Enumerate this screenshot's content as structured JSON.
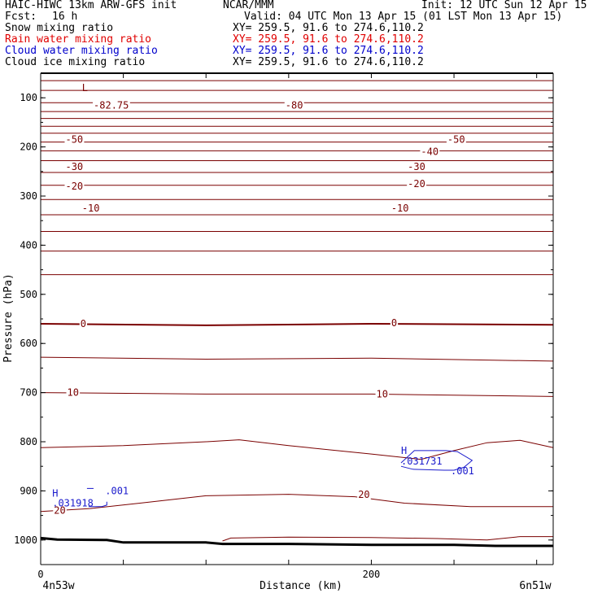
{
  "header": {
    "model": "HAIC-HIWC 13km ARW-GFS init",
    "org": "NCAR/MMM",
    "init": "Init: 12 UTC Sun 12 Apr 15",
    "fcst_label": "Fcst:",
    "fcst_value": "16 h",
    "valid": "Valid: 04 UTC Mon 13 Apr 15 (01 LST Mon 13 Apr 15)"
  },
  "fields": [
    {
      "name": "Snow mixing ratio",
      "xy": "XY= 259.5, 91.6 to 274.6,110.2",
      "color": "#000000"
    },
    {
      "name": "Rain water mixing ratio",
      "xy": "XY= 259.5, 91.6 to 274.6,110.2",
      "color": "#e00000"
    },
    {
      "name": "Cloud water mixing ratio",
      "xy": "XY= 259.5, 91.6 to 274.6,110.2",
      "color": "#0000cc"
    },
    {
      "name": "Cloud ice mixing ratio",
      "xy": "XY= 259.5, 91.6 to 274.6,110.2",
      "color": "#000000"
    }
  ],
  "chart_data": {
    "type": "line",
    "ylabel": "Pressure (hPa)",
    "xlabel": "Distance (km)",
    "x_ticks": [
      "0",
      "200"
    ],
    "y_ticks": [
      "100",
      "200",
      "300",
      "400",
      "500",
      "600",
      "700",
      "800",
      "900",
      "1000"
    ],
    "xlim": [
      0,
      310
    ],
    "ylim": [
      1050,
      50
    ],
    "left_endpoint": "4n53w",
    "right_endpoint": "6n51w",
    "contour_color": "#7a0000",
    "terrain_color": "#000000",
    "cloud_color": "#1a1acc",
    "contour_labels": [
      {
        "text": "-82.75",
        "x": 32,
        "y": 115
      },
      {
        "text": "-80",
        "x": 148,
        "y": 115
      },
      {
        "text": "-50",
        "x": 15,
        "y": 185
      },
      {
        "text": "-50",
        "x": 246,
        "y": 185
      },
      {
        "text": "-40",
        "x": 230,
        "y": 210
      },
      {
        "text": "-30",
        "x": 15,
        "y": 240
      },
      {
        "text": "-30",
        "x": 222,
        "y": 240
      },
      {
        "text": "-20",
        "x": 15,
        "y": 280
      },
      {
        "text": "-20",
        "x": 222,
        "y": 275
      },
      {
        "text": "-10",
        "x": 25,
        "y": 325
      },
      {
        "text": "-10",
        "x": 212,
        "y": 325
      },
      {
        "text": "0",
        "x": 24,
        "y": 560
      },
      {
        "text": "0",
        "x": 212,
        "y": 558
      },
      {
        "text": "10",
        "x": 16,
        "y": 700
      },
      {
        "text": "10",
        "x": 203,
        "y": 703
      },
      {
        "text": "20",
        "x": 192,
        "y": 908
      },
      {
        "text": "20",
        "x": 8,
        "y": 940
      }
    ],
    "extrema": [
      {
        "text": "L",
        "x": 25,
        "y": 80,
        "group": "contour"
      },
      {
        "text": "H",
        "x": 218,
        "y": 818,
        "group": "cloud"
      },
      {
        "text": ".031731",
        "x": 218,
        "y": 840,
        "group": "cloud"
      },
      {
        "text": ".001",
        "x": 248,
        "y": 860,
        "group": "cloud"
      },
      {
        "text": "H",
        "x": 7,
        "y": 905,
        "group": "cloud"
      },
      {
        "text": ".031918",
        "x": 7,
        "y": 925,
        "group": "cloud"
      },
      {
        "text": ".001",
        "x": 39,
        "y": 900,
        "group": "cloud"
      }
    ],
    "isotherms": [
      {
        "x": [
          0,
          310
        ],
        "y": [
          65,
          65
        ]
      },
      {
        "x": [
          0,
          310
        ],
        "y": [
          85,
          85
        ]
      },
      {
        "x": [
          0,
          310
        ],
        "y": [
          110,
          110
        ]
      },
      {
        "x": [
          0,
          310
        ],
        "y": [
          128,
          128
        ]
      },
      {
        "x": [
          0,
          310
        ],
        "y": [
          142,
          142
        ]
      },
      {
        "x": [
          0,
          310
        ],
        "y": [
          158,
          158
        ]
      },
      {
        "x": [
          0,
          310
        ],
        "y": [
          172,
          172
        ]
      },
      {
        "x": [
          0,
          310
        ],
        "y": [
          190,
          190
        ]
      },
      {
        "x": [
          0,
          310
        ],
        "y": [
          208,
          208
        ]
      },
      {
        "x": [
          0,
          310
        ],
        "y": [
          228,
          228
        ]
      },
      {
        "x": [
          0,
          310
        ],
        "y": [
          252,
          252
        ]
      },
      {
        "x": [
          0,
          310
        ],
        "y": [
          278,
          278
        ]
      },
      {
        "x": [
          0,
          310
        ],
        "y": [
          307,
          307
        ]
      },
      {
        "x": [
          0,
          310
        ],
        "y": [
          338,
          338
        ]
      },
      {
        "x": [
          0,
          310
        ],
        "y": [
          372,
          372
        ]
      },
      {
        "x": [
          0,
          310
        ],
        "y": [
          412,
          412
        ]
      },
      {
        "x": [
          0,
          310
        ],
        "y": [
          460,
          460
        ]
      },
      {
        "x": [
          0,
          100,
          200,
          310
        ],
        "y": [
          560,
          563,
          560,
          562
        ],
        "w": 2
      },
      {
        "x": [
          0,
          100,
          200,
          310
        ],
        "y": [
          628,
          632,
          630,
          636
        ]
      },
      {
        "x": [
          0,
          100,
          200,
          310
        ],
        "y": [
          700,
          703,
          703,
          708
        ]
      },
      {
        "x": [
          0,
          50,
          100,
          120,
          150,
          200,
          230,
          250,
          270,
          290,
          310
        ],
        "y": [
          812,
          808,
          800,
          796,
          808,
          825,
          836,
          818,
          802,
          797,
          812
        ]
      },
      {
        "x": [
          0,
          30,
          60,
          100,
          150,
          190,
          220,
          260,
          310
        ],
        "y": [
          942,
          936,
          925,
          910,
          907,
          912,
          925,
          932,
          932
        ]
      },
      {
        "x": [
          110,
          115,
          150,
          200,
          240,
          270,
          290,
          310
        ],
        "y": [
          1002,
          996,
          994,
          995,
          997,
          1000,
          993,
          993
        ]
      }
    ],
    "terrain": {
      "x": [
        0,
        10,
        40,
        50,
        100,
        110,
        150,
        200,
        250,
        275,
        310
      ],
      "y": [
        996,
        999,
        1000,
        1005,
        1005,
        1008,
        1008,
        1010,
        1010,
        1012,
        1012
      ]
    },
    "cloud_contours": [
      {
        "x": [
          218,
          226,
          245,
          252,
          261,
          256,
          250,
          244,
          225,
          218
        ],
        "y": [
          843,
          818,
          818,
          820,
          838,
          852,
          858,
          858,
          856,
          850
        ]
      },
      {
        "x": [
          29,
          37,
          40,
          40
        ],
        "y": [
          932,
          932,
          929,
          922
        ]
      },
      {
        "x": [
          28,
          32
        ],
        "y": [
          895,
          895
        ]
      }
    ]
  }
}
